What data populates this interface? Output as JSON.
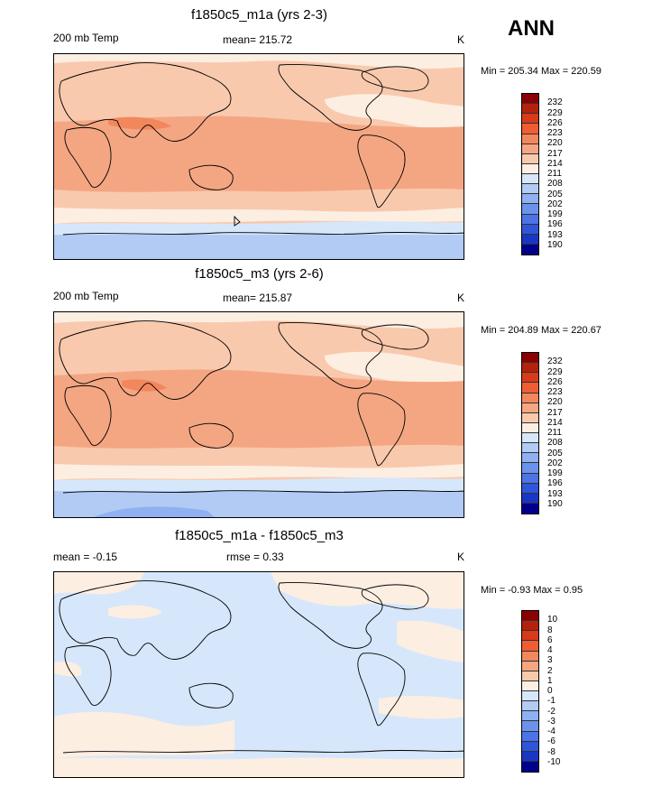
{
  "season": "ANN",
  "panels": [
    {
      "title": "f1850c5_m1a (yrs 2-3)",
      "left_label": "200 mb Temp",
      "center_label": "mean= 215.72",
      "units": "K",
      "range_text": "Min = 205.34 Max = 220.59"
    },
    {
      "title": "f1850c5_m3 (yrs 2-6)",
      "left_label": "200 mb Temp",
      "center_label": "mean= 215.87",
      "units": "K",
      "range_text": "Min = 204.89 Max = 220.67"
    },
    {
      "title": "f1850c5_m1a - f1850c5_m3",
      "left_label": "mean =  -0.15",
      "center_label": "rmse =   0.33",
      "units": "K",
      "range_text": "Min =  -0.93 Max =   0.95"
    }
  ],
  "colorbars": {
    "temp": {
      "labels": [
        "232",
        "229",
        "226",
        "223",
        "220",
        "217",
        "214",
        "211",
        "208",
        "205",
        "202",
        "199",
        "196",
        "193",
        "190"
      ],
      "colors": [
        "#8b0000",
        "#b5220b",
        "#d83a1a",
        "#ee5e32",
        "#f2875e",
        "#f4a682",
        "#f9c9ad",
        "#fdeee2",
        "#d6e7fb",
        "#b2cbf5",
        "#8fb0f1",
        "#6b92ec",
        "#4c74e6",
        "#2f55db",
        "#1a36c4",
        "#00008b"
      ]
    },
    "diff": {
      "labels": [
        "10",
        "8",
        "6",
        "4",
        "3",
        "2",
        "1",
        "0",
        "-1",
        "-2",
        "-3",
        "-4",
        "-6",
        "-8",
        "-10"
      ],
      "colors": [
        "#8b0000",
        "#b5220b",
        "#d83a1a",
        "#ee5e32",
        "#f2875e",
        "#f4a682",
        "#f9c9ad",
        "#fdeee2",
        "#d6e7fb",
        "#b2cbf5",
        "#8fb0f1",
        "#6b92ec",
        "#4c74e6",
        "#2f55db",
        "#1a36c4",
        "#00008b"
      ]
    }
  }
}
